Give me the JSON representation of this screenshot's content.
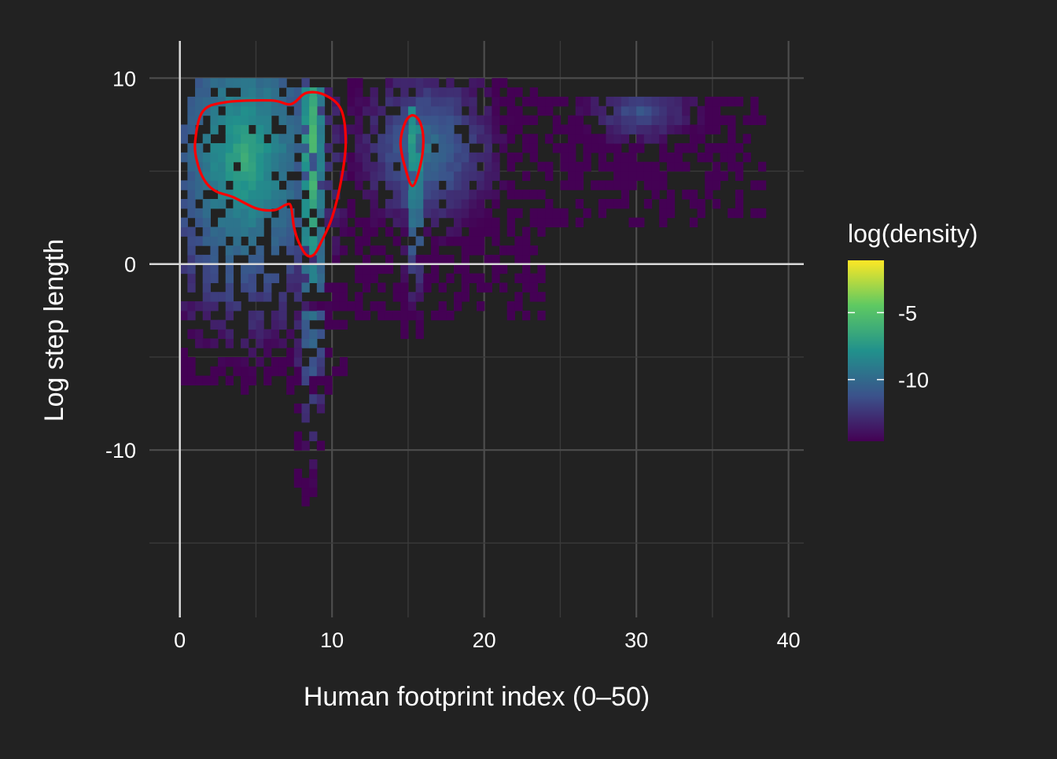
{
  "chart_data": {
    "type": "heatmap",
    "title": "",
    "xlabel": "Human footprint index (0–50)",
    "ylabel": "Log step length",
    "xlim": [
      -2,
      41
    ],
    "ylim": [
      -19,
      12
    ],
    "x_ticks": [
      0,
      10,
      20,
      30,
      40
    ],
    "y_ticks": [
      -10,
      0,
      10
    ],
    "grid": true,
    "reference_lines": {
      "x": 0,
      "y": 0
    },
    "legend": {
      "title": "log(density)",
      "position": "right",
      "range": [
        -14.6,
        -1.1
      ],
      "ticks": [
        -5,
        -10
      ],
      "colormap": [
        "#440154",
        "#3b528b",
        "#21918c",
        "#5ec962",
        "#fde725"
      ]
    },
    "contour_color": "#ff0000",
    "density_regions": [
      {
        "x_range": [
          0,
          11
        ],
        "y_range": [
          -7,
          9.8
        ],
        "peak_x": 4,
        "peak_y": 5.5,
        "peak_value": -6.5
      },
      {
        "x_range": [
          7.6,
          9.4
        ],
        "y_range": [
          -13,
          9.5
        ],
        "peak_x": 8.5,
        "peak_y": 6,
        "peak_value": -4.8
      },
      {
        "x_range": [
          14.5,
          16
        ],
        "y_range": [
          -4,
          8.5
        ],
        "peak_x": 15.2,
        "peak_y": 6,
        "peak_value": -5.6
      },
      {
        "x_range": [
          11,
          24
        ],
        "y_range": [
          -3,
          9.6
        ],
        "peak_x": 16,
        "peak_y": 6,
        "peak_value": -9.5
      },
      {
        "x_range": [
          24,
          38.5
        ],
        "y_range": [
          2,
          8.8
        ],
        "peak_x": 30,
        "peak_y": 8,
        "peak_value": -11
      }
    ],
    "contours": [
      {
        "level": "high-density",
        "points": [
          [
            1,
            6.5
          ],
          [
            1.5,
            8.2
          ],
          [
            3,
            8.7
          ],
          [
            6,
            8.8
          ],
          [
            7.3,
            8.6
          ],
          [
            8.3,
            9.2
          ],
          [
            9.5,
            9.1
          ],
          [
            10.6,
            8.3
          ],
          [
            10.9,
            6.5
          ],
          [
            10.6,
            4.5
          ],
          [
            10,
            2.5
          ],
          [
            9.3,
            1.2
          ],
          [
            8.8,
            0.5
          ],
          [
            8.3,
            0.5
          ],
          [
            7.8,
            1.2
          ],
          [
            7.5,
            2
          ],
          [
            7.3,
            3.1
          ],
          [
            7,
            3.2
          ],
          [
            6.2,
            2.9
          ],
          [
            5,
            3
          ],
          [
            3.5,
            3.6
          ],
          [
            2.4,
            3.9
          ],
          [
            1.7,
            4.4
          ],
          [
            1.2,
            5.3
          ]
        ]
      },
      {
        "level": "high-density",
        "points": [
          [
            14.5,
            6.5
          ],
          [
            14.8,
            7.6
          ],
          [
            15.3,
            8
          ],
          [
            15.8,
            7.6
          ],
          [
            16,
            6.6
          ],
          [
            15.8,
            5.3
          ],
          [
            15.3,
            4.2
          ],
          [
            14.8,
            5.2
          ]
        ]
      }
    ]
  }
}
